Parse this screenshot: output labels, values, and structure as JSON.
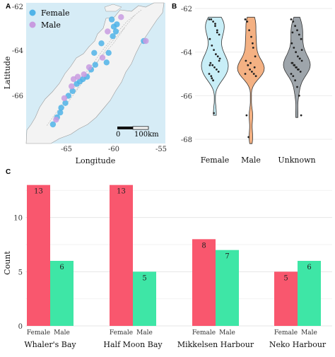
{
  "panels": {
    "a": {
      "letter": "A",
      "xlabel": "Longitude",
      "ylabel": "Latitude",
      "legend": [
        {
          "label": "Female",
          "color": "#4fb3e8"
        },
        {
          "label": "Male",
          "color": "#c89be0"
        }
      ],
      "scalebar_label": "100km",
      "scalebar_zero": "0",
      "xticks": [
        "-65",
        "-60",
        "-55"
      ],
      "yticks": [
        "-62",
        "-64",
        "-66"
      ]
    },
    "b": {
      "letter": "B",
      "yticks": [
        "-62",
        "-64",
        "-66",
        "-68"
      ]
    },
    "c": {
      "letter": "C",
      "ylabel": "Count",
      "yticks": [
        "0",
        "5",
        "10"
      ]
    }
  },
  "chart_data": [
    {
      "type": "scatter",
      "panel": "A",
      "xlabel": "Longitude",
      "ylabel": "Latitude",
      "xlim": [
        -68.5,
        -55
      ],
      "ylim": [
        -67.7,
        -61.8
      ],
      "series": [
        {
          "name": "Female",
          "color": "#4fb3e8",
          "points": [
            [
              -60.2,
              -62.5
            ],
            [
              -60.0,
              -62.8
            ],
            [
              -59.8,
              -63.0
            ],
            [
              -60.1,
              -63.2
            ],
            [
              -59.7,
              -62.7
            ],
            [
              -61.2,
              -63.5
            ],
            [
              -60.5,
              -63.9
            ],
            [
              -60.7,
              -64.3
            ],
            [
              -61.8,
              -64.4
            ],
            [
              -62.2,
              -64.6
            ],
            [
              -62.6,
              -64.9
            ],
            [
              -63.0,
              -65.0
            ],
            [
              -63.6,
              -65.2
            ],
            [
              -64.0,
              -65.5
            ],
            [
              -64.7,
              -66.0
            ],
            [
              -65.1,
              -66.2
            ],
            [
              -65.5,
              -66.6
            ],
            [
              -65.9,
              -66.9
            ],
            [
              -57.1,
              -63.4
            ],
            [
              -61.9,
              -63.9
            ],
            [
              -63.3,
              -65.1
            ],
            [
              -64.4,
              -65.7
            ],
            [
              -65.2,
              -66.4
            ]
          ]
        },
        {
          "name": "Male",
          "color": "#c89be0",
          "points": [
            [
              -59.3,
              -62.4
            ],
            [
              -60.6,
              -63.0
            ],
            [
              -61.1,
              -64.1
            ],
            [
              -62.4,
              -64.5
            ],
            [
              -62.9,
              -64.8
            ],
            [
              -63.5,
              -64.9
            ],
            [
              -64.1,
              -65.3
            ],
            [
              -64.8,
              -65.8
            ],
            [
              -65.6,
              -66.7
            ],
            [
              -56.9,
              -63.4
            ],
            [
              -63.9,
              -65.0
            ]
          ]
        }
      ]
    },
    {
      "type": "violin",
      "panel": "B",
      "categories": [
        "Female",
        "Male",
        "Unknown"
      ],
      "colors": [
        "#c8eef7",
        "#f4b183",
        "#9ea5ab"
      ],
      "ylim": [
        -68,
        -62
      ],
      "yticks": [
        -62,
        -64,
        -66,
        -68
      ],
      "series": [
        {
          "name": "Female",
          "ymin": -66.9,
          "ymax": -62.4,
          "points": [
            -62.5,
            -62.5,
            -62.6,
            -62.8,
            -63.0,
            -63.2,
            -63.4,
            -63.7,
            -63.9,
            -64.1,
            -64.2,
            -64.3,
            -64.5,
            -64.6,
            -64.7,
            -64.8,
            -64.9,
            -65.0,
            -65.1,
            -65.3,
            -62.7,
            -63.1,
            -64.4,
            -64.6,
            -65.2,
            -66.8
          ]
        },
        {
          "name": "Male",
          "ymin": -68.2,
          "ymax": -62.4,
          "points": [
            -62.5,
            -62.6,
            -63.0,
            -63.3,
            -63.8,
            -64.2,
            -64.4,
            -64.6,
            -64.8,
            -64.9,
            -65.0,
            -65.1,
            -66.9,
            -67.9,
            -64.5,
            -63.6,
            -64.7,
            -65.0
          ]
        },
        {
          "name": "Unknown",
          "ymin": -67.0,
          "ymax": -62.4,
          "points": [
            -62.5,
            -62.6,
            -62.8,
            -63.0,
            -63.2,
            -63.4,
            -63.6,
            -63.8,
            -64.0,
            -64.2,
            -64.3,
            -64.4,
            -64.5,
            -64.6,
            -64.7,
            -64.8,
            -64.9,
            -65.0,
            -65.1,
            -65.3,
            -65.6,
            -66.0,
            -66.9,
            -64.5,
            -64.6,
            -64.7,
            -64.8,
            -64.3,
            -63.9,
            -63.1
          ]
        }
      ]
    },
    {
      "type": "bar",
      "panel": "C",
      "ylabel": "Count",
      "ylim": [
        0,
        13.5
      ],
      "yticks": [
        0,
        5,
        10
      ],
      "groups": [
        {
          "name": "Whaler's Bay",
          "bars": [
            {
              "label": "Female",
              "value": 13
            },
            {
              "label": "Male",
              "value": 6
            }
          ]
        },
        {
          "name": "Half Moon Bay",
          "bars": [
            {
              "label": "Female",
              "value": 13
            },
            {
              "label": "Male",
              "value": 5
            }
          ]
        },
        {
          "name": "Mikkelsen Harbour",
          "bars": [
            {
              "label": "Female",
              "value": 8
            },
            {
              "label": "Male",
              "value": 7
            }
          ]
        },
        {
          "name": "Neko Harbour",
          "bars": [
            {
              "label": "Female",
              "value": 5
            },
            {
              "label": "Male",
              "value": 6
            }
          ]
        }
      ],
      "colors": {
        "Female": "#f9576e",
        "Male": "#3ee6a6"
      }
    }
  ]
}
